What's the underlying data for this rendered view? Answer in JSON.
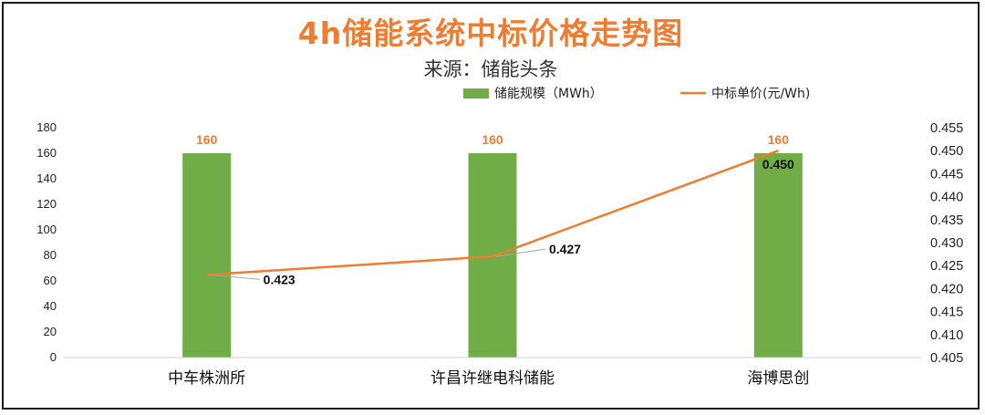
{
  "chart_data": {
    "type": "bar",
    "title": "4h储能系统中标价格走势图",
    "subtitle": "来源：储能头条",
    "categories": [
      "中车株洲所",
      "许昌许继电科储能",
      "海博思创"
    ],
    "series": [
      {
        "name": "储能规模（MWh）",
        "type": "bar",
        "axis": "left",
        "color": "#70ad47",
        "values": [
          160,
          160,
          160
        ],
        "labels": [
          "160",
          "160",
          "160"
        ]
      },
      {
        "name": "中标单价(元/Wh)",
        "type": "line",
        "axis": "right",
        "color": "#ef7d31",
        "values": [
          0.423,
          0.427,
          0.45
        ],
        "labels": [
          "0.423",
          "0.427",
          "0.450"
        ]
      }
    ],
    "y_left": {
      "lim": [
        0,
        180
      ],
      "ticks": [
        "0",
        "20",
        "40",
        "60",
        "80",
        "100",
        "120",
        "140",
        "160",
        "180"
      ]
    },
    "y_right": {
      "lim": [
        0.405,
        0.455
      ],
      "ticks": [
        "0.405",
        "0.410",
        "0.415",
        "0.420",
        "0.425",
        "0.430",
        "0.435",
        "0.440",
        "0.445",
        "0.450",
        "0.455"
      ]
    },
    "grid": false,
    "legend_position": "top"
  }
}
